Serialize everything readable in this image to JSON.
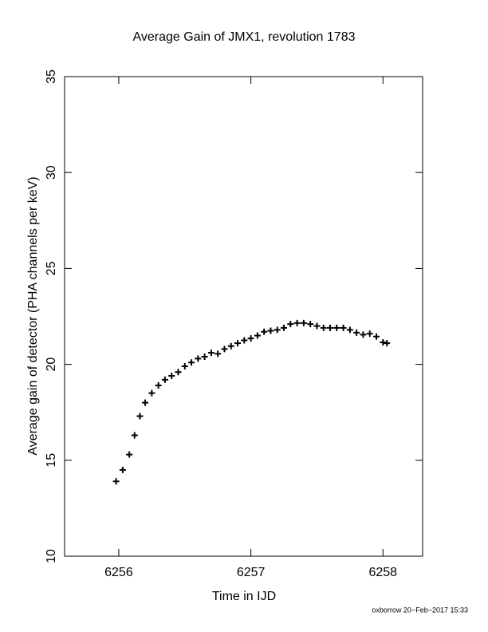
{
  "chart_data": {
    "type": "scatter",
    "title": "Average Gain of JMX1, revolution 1783",
    "x_label": "Time in IJD",
    "y_label": "Average gain of detector (PHA channels per keV)",
    "annotation": "oxborrow 20−Feb−2017 15:33",
    "color": "#000000",
    "marker": "+",
    "xlim": [
      6255.59,
      6258.3
    ],
    "ylim": [
      10,
      35
    ],
    "xticks": [
      6256,
      6257,
      6258
    ],
    "yticks": [
      10,
      15,
      20,
      25,
      30,
      35
    ],
    "x": [
      6255.98,
      6256.03,
      6256.08,
      6256.12,
      6256.16,
      6256.2,
      6256.25,
      6256.3,
      6256.35,
      6256.4,
      6256.45,
      6256.5,
      6256.55,
      6256.6,
      6256.65,
      6256.7,
      6256.75,
      6256.8,
      6256.85,
      6256.9,
      6256.95,
      6257.0,
      6257.05,
      6257.1,
      6257.15,
      6257.2,
      6257.25,
      6257.3,
      6257.35,
      6257.4,
      6257.45,
      6257.5,
      6257.55,
      6257.6,
      6257.65,
      6257.7,
      6257.75,
      6257.8,
      6257.85,
      6257.9,
      6257.95,
      6258.0,
      6258.03
    ],
    "values": [
      13.9,
      14.5,
      15.3,
      16.3,
      17.3,
      18.0,
      18.5,
      18.9,
      19.2,
      19.4,
      19.6,
      19.9,
      20.1,
      20.3,
      20.4,
      20.6,
      20.55,
      20.8,
      20.95,
      21.1,
      21.25,
      21.35,
      21.5,
      21.7,
      21.75,
      21.8,
      21.9,
      22.1,
      22.15,
      22.15,
      22.1,
      22.0,
      21.9,
      21.9,
      21.9,
      21.9,
      21.8,
      21.65,
      21.55,
      21.6,
      21.45,
      21.15,
      21.1
    ]
  }
}
